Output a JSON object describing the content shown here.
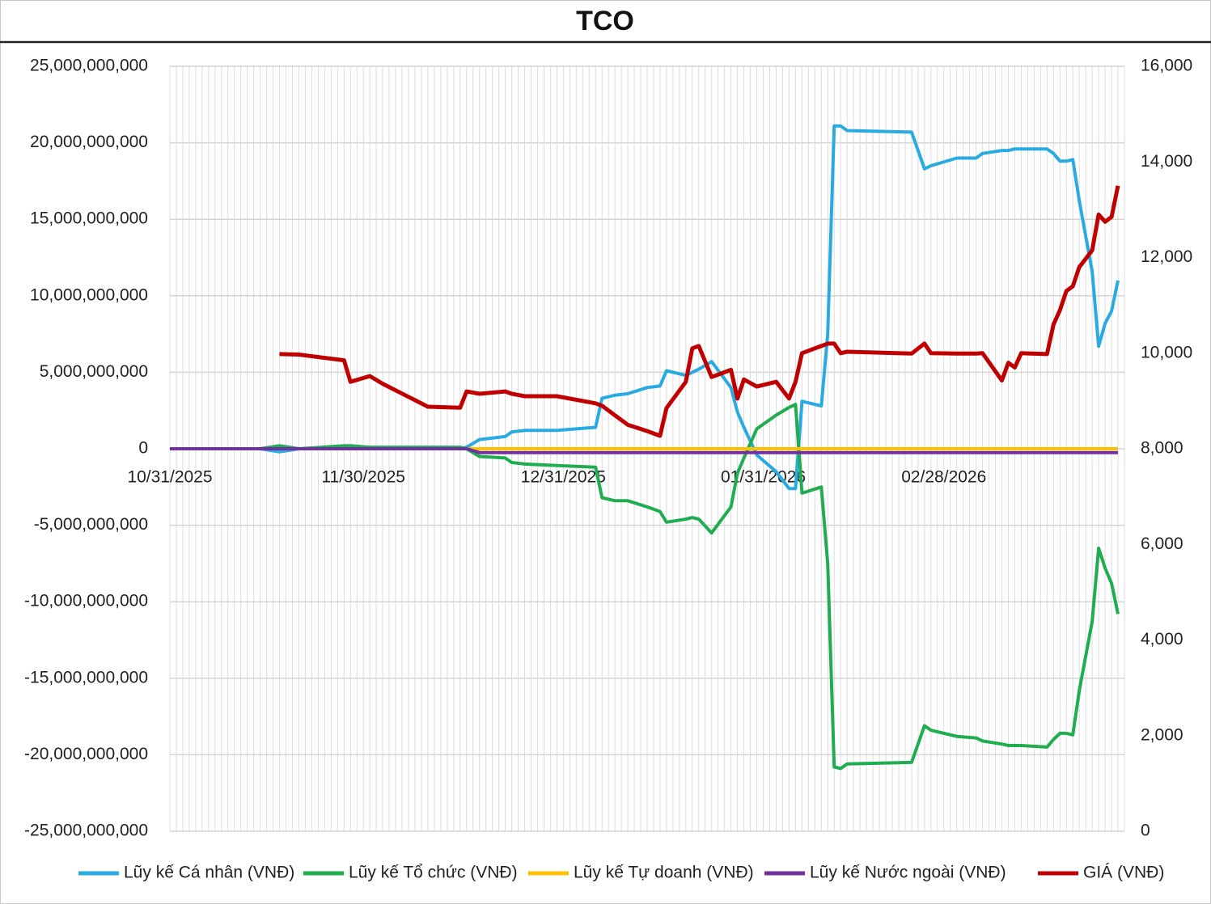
{
  "chart_data": {
    "type": "line",
    "title": "TCO",
    "x": [
      "10/31/2025",
      "11/14/2025",
      "11/17/2025",
      "11/20/2025",
      "11/27/2025",
      "11/28/2025",
      "12/01/2025",
      "12/03/2025",
      "12/10/2025",
      "12/15/2025",
      "12/16/2025",
      "12/18/2025",
      "12/22/2025",
      "12/23/2025",
      "12/25/2025",
      "12/30/2025",
      "01/05/2026",
      "01/06/2026",
      "01/08/2026",
      "01/10/2026",
      "01/13/2026",
      "01/15/2026",
      "01/16/2026",
      "01/19/2026",
      "01/20/2026",
      "01/21/2026",
      "01/23/2026",
      "01/26/2026",
      "01/27/2026",
      "01/28/2026",
      "01/30/2026",
      "02/02/2026",
      "02/04/2026",
      "02/05/2026",
      "02/06/2026",
      "02/09/2026",
      "02/10/2026",
      "02/11/2026",
      "02/12/2026",
      "02/13/2026",
      "02/23/2026",
      "02/25/2026",
      "02/26/2026",
      "03/02/2026",
      "03/05/2026",
      "03/06/2026",
      "03/09/2026",
      "03/10/2026",
      "03/11/2026",
      "03/12/2026",
      "03/16/2026",
      "03/17/2026",
      "03/18/2026",
      "03/19/2026",
      "03/20/2026",
      "03/21/2026",
      "03/23/2026",
      "03/24/2026",
      "03/25/2026",
      "03/26/2026",
      "03/27/2026"
    ],
    "xlim": [
      "10/31/2025",
      "03/28/2026"
    ],
    "xticks": [
      "10/31/2025",
      "11/30/2025",
      "12/31/2025",
      "01/31/2026",
      "02/28/2026"
    ],
    "ylim": [
      -25000000000,
      25000000000
    ],
    "yticks": [
      {
        "value": -25000000000,
        "label": "-25,000,000,000"
      },
      {
        "value": -20000000000,
        "label": "-20,000,000,000"
      },
      {
        "value": -15000000000,
        "label": "-15,000,000,000"
      },
      {
        "value": -10000000000,
        "label": "-10,000,000,000"
      },
      {
        "value": -5000000000,
        "label": "-5,000,000,000"
      },
      0,
      {
        "value": 5000000000,
        "label": "5,000,000,000"
      },
      {
        "value": 10000000000,
        "label": "10,000,000,000"
      },
      {
        "value": 15000000000,
        "label": "15,000,000,000"
      },
      {
        "value": 20000000000,
        "label": "20,000,000,000"
      },
      {
        "value": 25000000000,
        "label": "25,000,000,000"
      }
    ],
    "y2lim": [
      0,
      16000
    ],
    "y2ticks": [
      0,
      {
        "value": 2000,
        "label": "2,000"
      },
      {
        "value": 4000,
        "label": "4,000"
      },
      {
        "value": 6000,
        "label": "6,000"
      },
      {
        "value": 8000,
        "label": "8,000"
      },
      {
        "value": 10000,
        "label": "10,000"
      },
      {
        "value": 12000,
        "label": "12,000"
      },
      {
        "value": 14000,
        "label": "14,000"
      },
      {
        "value": 16000,
        "label": "16,000"
      }
    ],
    "grid": true,
    "legend": "bottom",
    "series": [
      {
        "name": "Lũy kế Cá nhân (VNĐ)",
        "color": "#29abe2",
        "values": [
          0,
          0,
          -200000000,
          0,
          0,
          0,
          0,
          0,
          0,
          0,
          100000000,
          600000000,
          800000000,
          1100000000,
          1200000000,
          1200000000,
          1400000000,
          3300000000,
          3500000000,
          3600000000,
          4000000000,
          4100000000,
          5100000000,
          4800000000,
          5000000000,
          5200000000,
          5700000000,
          4000000000,
          2400000000,
          1400000000,
          -400000000,
          -1500000000,
          -2600000000,
          -2600000000,
          3100000000,
          2800000000,
          7500000000,
          21100000000,
          21100000000,
          20800000000,
          20700000000,
          18300000000,
          18500000000,
          19000000000,
          19000000000,
          19300000000,
          19500000000,
          19500000000,
          19600000000,
          19600000000,
          19600000000,
          19300000000,
          18800000000,
          18800000000,
          18900000000,
          16200000000,
          11600000000,
          6700000000,
          8200000000,
          9000000000,
          11000000000
        ]
      },
      {
        "name": "Lũy kế Tổ chức (VNĐ)",
        "color": "#1fad4f",
        "values": [
          0,
          0,
          200000000,
          0,
          200000000,
          200000000,
          100000000,
          100000000,
          100000000,
          100000000,
          0,
          -500000000,
          -600000000,
          -900000000,
          -1000000000,
          -1100000000,
          -1200000000,
          -3200000000,
          -3400000000,
          -3400000000,
          -3800000000,
          -4100000000,
          -4800000000,
          -4600000000,
          -4500000000,
          -4600000000,
          -5500000000,
          -3800000000,
          -1600000000,
          -600000000,
          1300000000,
          2200000000,
          2700000000,
          2900000000,
          -2900000000,
          -2500000000,
          -7500000000,
          -20800000000,
          -20900000000,
          -20600000000,
          -20500000000,
          -18100000000,
          -18400000000,
          -18800000000,
          -18900000000,
          -19100000000,
          -19300000000,
          -19400000000,
          -19400000000,
          -19400000000,
          -19500000000,
          -19000000000,
          -18600000000,
          -18600000000,
          -18700000000,
          -15800000000,
          -11300000000,
          -6500000000,
          -7800000000,
          -8800000000,
          -10800000000
        ]
      },
      {
        "name": "Lũy kế Tự doanh (VNĐ)",
        "color": "#ffc000",
        "values": [
          0,
          0,
          0,
          0,
          0,
          0,
          0,
          0,
          0,
          0,
          0,
          0,
          0,
          0,
          0,
          0,
          0,
          0,
          0,
          0,
          0,
          0,
          0,
          0,
          0,
          0,
          0,
          0,
          0,
          0,
          0,
          0,
          0,
          0,
          0,
          0,
          0,
          0,
          0,
          0,
          0,
          0,
          0,
          0,
          0,
          0,
          0,
          0,
          0,
          0,
          0,
          0,
          0,
          0,
          0,
          0,
          0,
          0,
          0,
          0,
          0
        ]
      },
      {
        "name": "Lũy kế Nước ngoài (VNĐ)",
        "color": "#7030a0",
        "values": [
          0,
          0,
          0,
          0,
          0,
          0,
          0,
          0,
          0,
          0,
          0,
          -250000000,
          -250000000,
          -250000000,
          -250000000,
          -250000000,
          -250000000,
          -250000000,
          -250000000,
          -250000000,
          -250000000,
          -250000000,
          -250000000,
          -250000000,
          -250000000,
          -250000000,
          -250000000,
          -250000000,
          -250000000,
          -250000000,
          -250000000,
          -250000000,
          -250000000,
          -250000000,
          -250000000,
          -250000000,
          -250000000,
          -250000000,
          -250000000,
          -250000000,
          -250000000,
          -250000000,
          -250000000,
          -250000000,
          -250000000,
          -250000000,
          -250000000,
          -250000000,
          -250000000,
          -250000000,
          -250000000,
          -250000000,
          -250000000,
          -250000000,
          -250000000,
          -250000000,
          -250000000,
          -250000000,
          -250000000,
          -250000000,
          -250000000
        ]
      },
      {
        "name": "GIÁ (VNĐ)",
        "color": "#c00000",
        "axis": "y2",
        "values": [
          null,
          null,
          9980,
          9970,
          9850,
          9400,
          9520,
          9360,
          8880,
          8860,
          9200,
          9150,
          9200,
          9150,
          9100,
          9100,
          8950,
          8900,
          8700,
          8500,
          8370,
          8270,
          8850,
          9400,
          10100,
          10150,
          9500,
          9650,
          9050,
          9450,
          9300,
          9400,
          9050,
          9400,
          10000,
          10150,
          10200,
          10200,
          10000,
          10030,
          9990,
          10200,
          10000,
          9990,
          9990,
          10000,
          9430,
          9800,
          9700,
          10000,
          9980,
          10600,
          10900,
          11300,
          11400,
          11800,
          12150,
          12900,
          12750,
          12850,
          13500
        ]
      }
    ]
  }
}
